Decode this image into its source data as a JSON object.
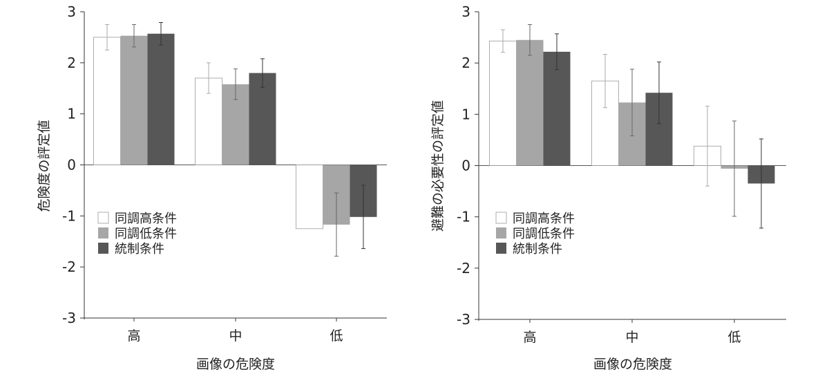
{
  "chart_data": [
    {
      "type": "bar",
      "categories": [
        "高",
        "中",
        "低"
      ],
      "xlabel": "画像の危険度",
      "ylabel": "危険度の評定値",
      "ylim": [
        -3,
        3
      ],
      "yticks": [
        "3",
        "2",
        "1",
        "0",
        "-1",
        "-2",
        "-3"
      ],
      "legend_position": "lower-left",
      "series": [
        {
          "name": "同調高条件",
          "color": "#ffffff",
          "values": [
            2.5,
            1.7,
            -1.25
          ],
          "err": [
            0.25,
            0.3,
            0.0
          ]
        },
        {
          "name": "同調低条件",
          "color": "#a6a6a6",
          "values": [
            2.53,
            1.58,
            -1.17
          ],
          "err": [
            0.22,
            0.3,
            0.62
          ]
        },
        {
          "name": "統制条件",
          "color": "#575757",
          "values": [
            2.57,
            1.8,
            -1.02
          ],
          "err": [
            0.22,
            0.28,
            0.62
          ]
        }
      ]
    },
    {
      "type": "bar",
      "categories": [
        "高",
        "中",
        "低"
      ],
      "xlabel": "画像の危険度",
      "ylabel": "避難の必要性の評定値",
      "ylim": [
        -3,
        3
      ],
      "yticks": [
        "3",
        "2",
        "1",
        "0",
        "-1",
        "-2",
        "-3"
      ],
      "legend_position": "lower-left",
      "series": [
        {
          "name": "同調高条件",
          "color": "#ffffff",
          "values": [
            2.43,
            1.65,
            0.38
          ],
          "err": [
            0.22,
            0.52,
            0.78
          ]
        },
        {
          "name": "同調低条件",
          "color": "#a6a6a6",
          "values": [
            2.45,
            1.23,
            -0.06
          ],
          "err": [
            0.3,
            0.65,
            0.93
          ]
        },
        {
          "name": "統制条件",
          "color": "#575757",
          "values": [
            2.22,
            1.42,
            -0.35
          ],
          "err": [
            0.35,
            0.6,
            0.87
          ]
        }
      ]
    }
  ]
}
